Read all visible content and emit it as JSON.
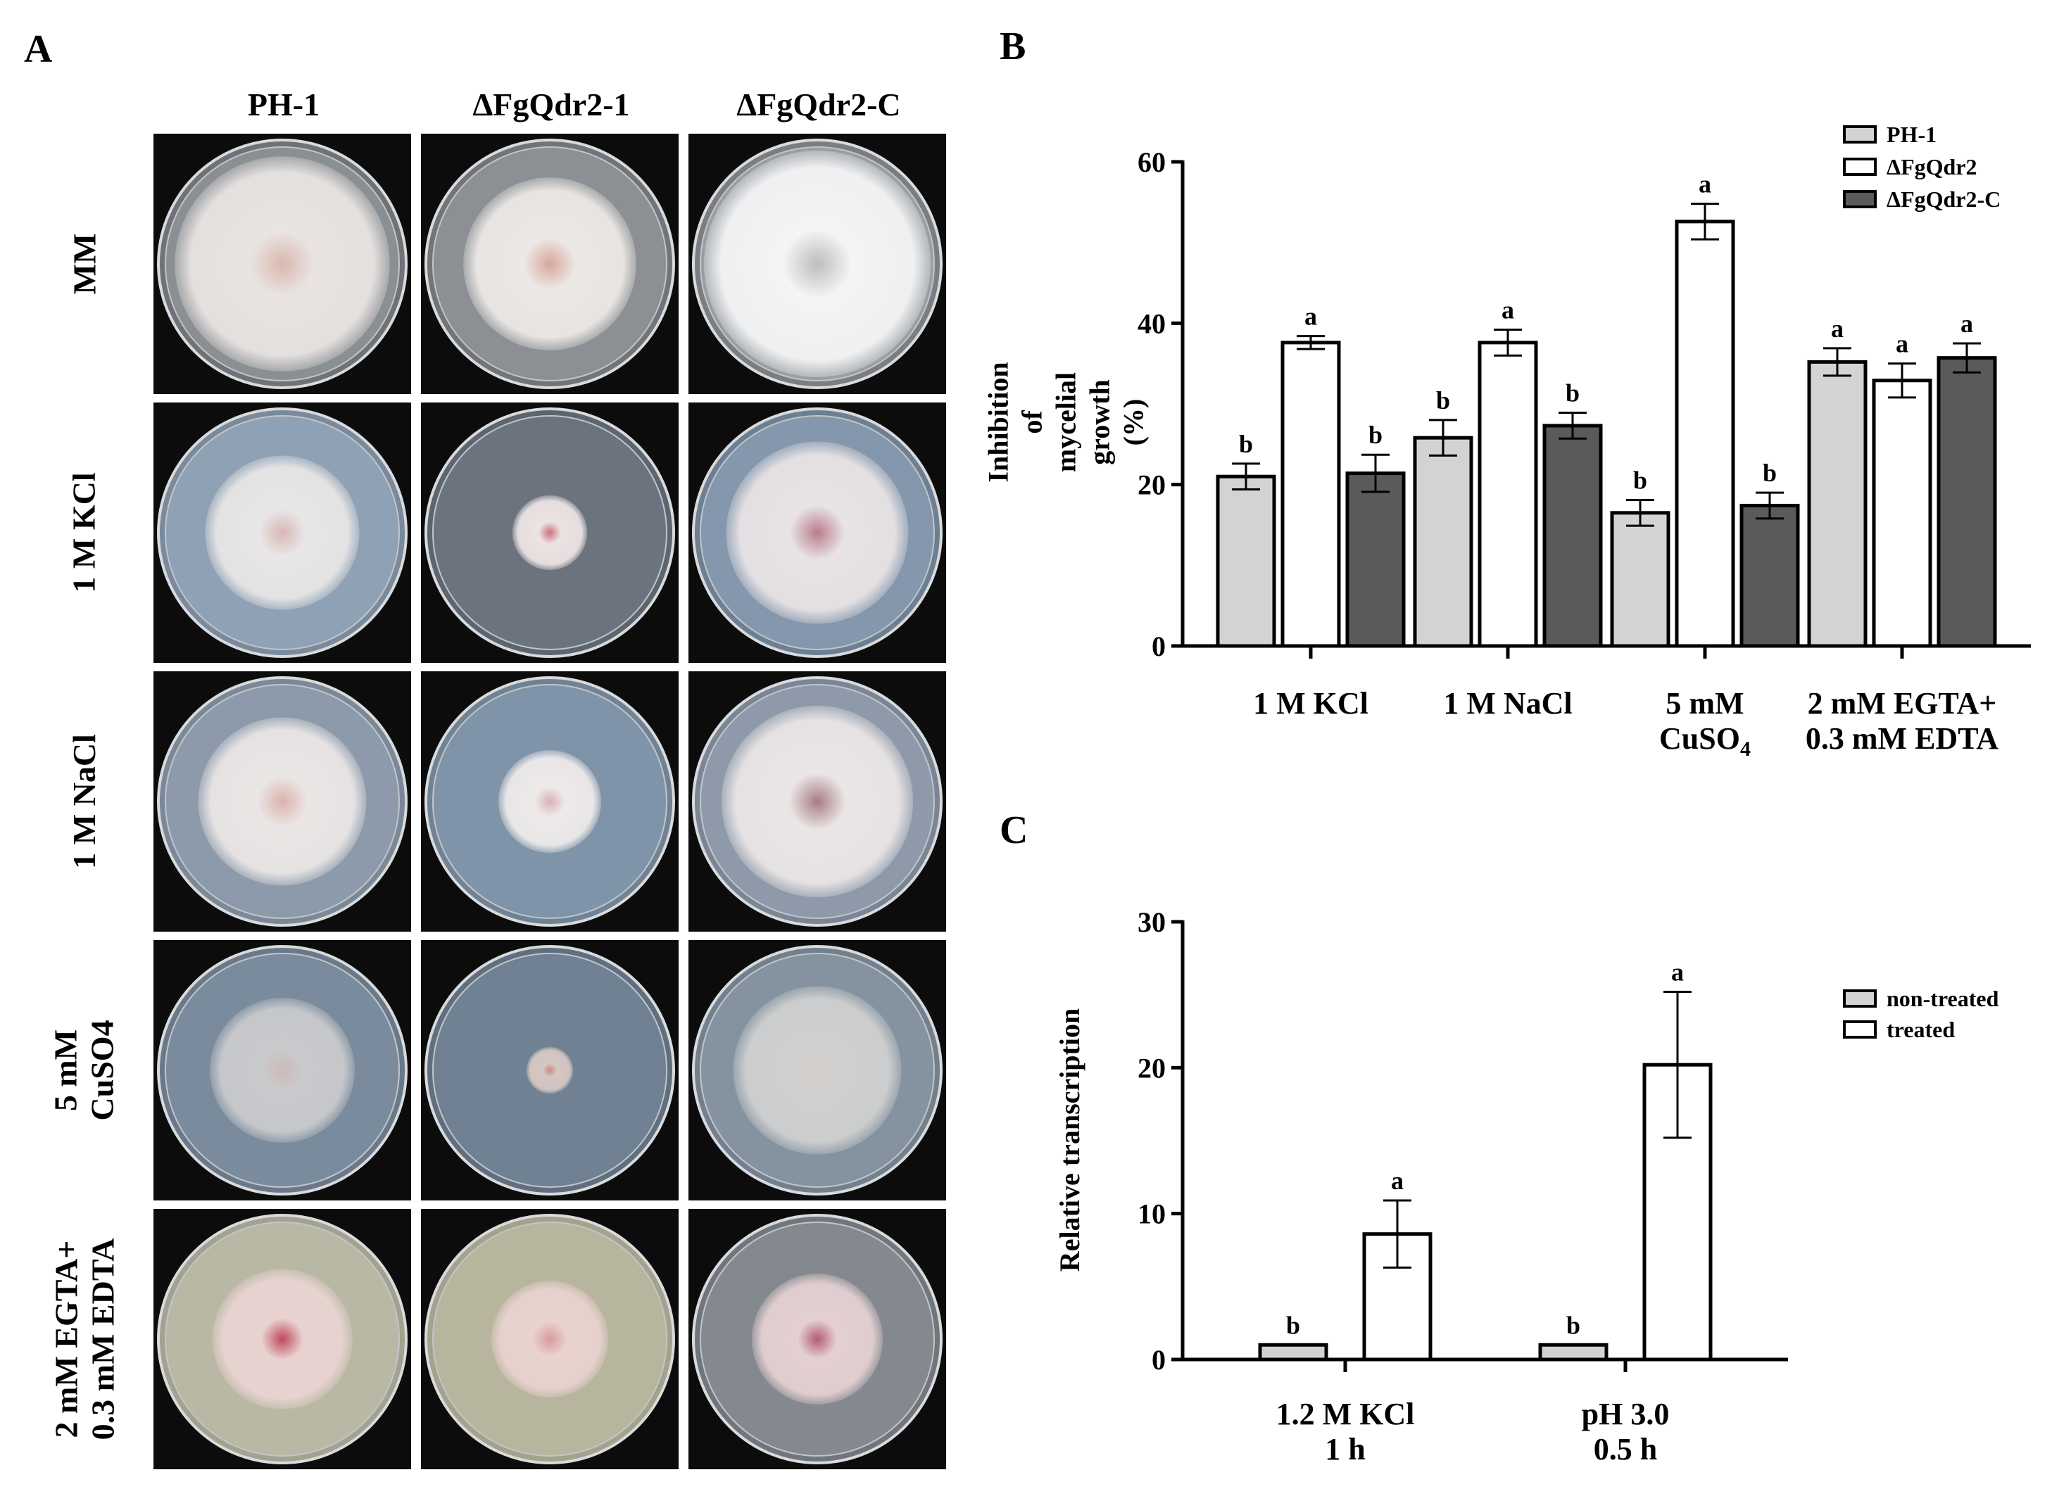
{
  "panel_labels": {
    "a": "A",
    "b": "B",
    "c": "C"
  },
  "panel_a": {
    "columns": [
      "PH-1",
      "ΔFgQdr2-1",
      "ΔFgQdr2-C"
    ],
    "rows": [
      {
        "line1": "MM",
        "line2": ""
      },
      {
        "line1": "1 M KCl",
        "line2": ""
      },
      {
        "line1": "1 M NaCl",
        "line2": ""
      },
      {
        "line1": "5 mM",
        "line2": "CuSO4"
      },
      {
        "line1": "2 mM EGTA+",
        "line2": "0.3 mM EDTA"
      }
    ],
    "plates": [
      [
        {
          "colony": 0.92,
          "tint": "#e9e4e2",
          "center": "#d9b8ad",
          "cover": "#6f7378",
          "bg": "#8a8f93"
        },
        {
          "colony": 0.74,
          "tint": "#ece8e6",
          "center": "#d7a79a",
          "cover": "#717579",
          "bg": "#8c9094"
        },
        {
          "colony": 0.97,
          "tint": "#f3f4f5",
          "center": "#bdbdbd",
          "cover": "#7a7e82",
          "bg": "#9a9ea2"
        }
      ],
      [
        {
          "colony": 0.66,
          "tint": "#e8e6e6",
          "center": "#d9b6b4",
          "cover": "#7a8a9c",
          "bg": "#8ea1b5"
        },
        {
          "colony": 0.32,
          "tint": "#ece3e3",
          "center": "#c9707a",
          "cover": "#5c6570",
          "bg": "#6b747e"
        },
        {
          "colony": 0.78,
          "tint": "#e8e3e5",
          "center": "#b97d8c",
          "cover": "#6d7f93",
          "bg": "#8497ac"
        }
      ],
      [
        {
          "colony": 0.72,
          "tint": "#eae6e5",
          "center": "#dcb2ad",
          "cover": "#7a8898",
          "bg": "#8c9aab"
        },
        {
          "colony": 0.44,
          "tint": "#eeeaea",
          "center": "#d9b2b4",
          "cover": "#6f8395",
          "bg": "#7f94a8"
        },
        {
          "colony": 0.82,
          "tint": "#eae6e6",
          "center": "#a87c84",
          "cover": "#7a8696",
          "bg": "#8e9aaa"
        }
      ],
      [
        {
          "colony": 0.62,
          "tint": "#c9cacc",
          "center": "#cbbcb8",
          "cover": "#69798a",
          "bg": "#7a8b9d"
        },
        {
          "colony": 0.2,
          "tint": "#d5c7c3",
          "center": "#c58c7d",
          "cover": "#5f6f80",
          "bg": "#6f8192"
        },
        {
          "colony": 0.72,
          "tint": "#d0d0d0",
          "center": "#d4d0cc",
          "cover": "#72808e",
          "bg": "#84939f"
        }
      ],
      [
        {
          "colony": 0.6,
          "tint": "#e8d3d0",
          "center": "#c0475a",
          "cover": "#a3a28f",
          "bg": "#b9b8a5"
        },
        {
          "colony": 0.5,
          "tint": "#e9d2cf",
          "center": "#d89a9c",
          "cover": "#a5a28c",
          "bg": "#b8b59f"
        },
        {
          "colony": 0.56,
          "tint": "#e4d0d2",
          "center": "#b25d72",
          "cover": "#71767d",
          "bg": "#848990"
        }
      ]
    ]
  },
  "chart_data": [
    {
      "type": "bar",
      "ylabel": "Inhibition of mycelial growth (%)",
      "ylim": [
        0,
        60
      ],
      "yticks": [
        0,
        20,
        40,
        60
      ],
      "categories": [
        "1 M KCl",
        "1 M NaCl",
        "5 mM CuSO4",
        "2 mM EGTA+ 0.3 mM EDTA"
      ],
      "series": [
        {
          "name": "PH-1",
          "color": "#d3d3d3",
          "values": [
            21,
            25.8,
            16.5,
            35.2
          ],
          "errors": [
            1.6,
            2.2,
            1.6,
            1.7
          ],
          "letters": [
            "b",
            "b",
            "b",
            "a"
          ]
        },
        {
          "name": "ΔFgQdr2",
          "color": "#ffffff",
          "values": [
            37.6,
            37.6,
            52.6,
            32.9
          ],
          "errors": [
            0.8,
            1.6,
            2.2,
            2.1
          ],
          "letters": [
            "a",
            "a",
            "a",
            "a"
          ]
        },
        {
          "name": "ΔFgQdr2-C",
          "color": "#5a5a5a",
          "values": [
            21.4,
            27.3,
            17.4,
            35.7
          ],
          "errors": [
            2.3,
            1.6,
            1.6,
            1.8
          ],
          "letters": [
            "b",
            "b",
            "b",
            "a"
          ]
        }
      ],
      "legend": "top-right"
    },
    {
      "type": "bar",
      "ylabel": "Relative transcription",
      "ylim": [
        0,
        30
      ],
      "yticks": [
        0,
        10,
        20,
        30
      ],
      "categories": [
        "1.2 M KCl 1 h",
        "pH 3.0 0.5 h"
      ],
      "series": [
        {
          "name": "non-treated",
          "color": "#d3d3d3",
          "values": [
            1,
            1
          ],
          "errors": [
            0,
            0
          ],
          "letters": [
            "b",
            "b"
          ]
        },
        {
          "name": "treated",
          "color": "#ffffff",
          "values": [
            8.6,
            20.2
          ],
          "errors": [
            2.3,
            5
          ],
          "letters": [
            "a",
            "a"
          ]
        }
      ],
      "legend": "right"
    }
  ]
}
